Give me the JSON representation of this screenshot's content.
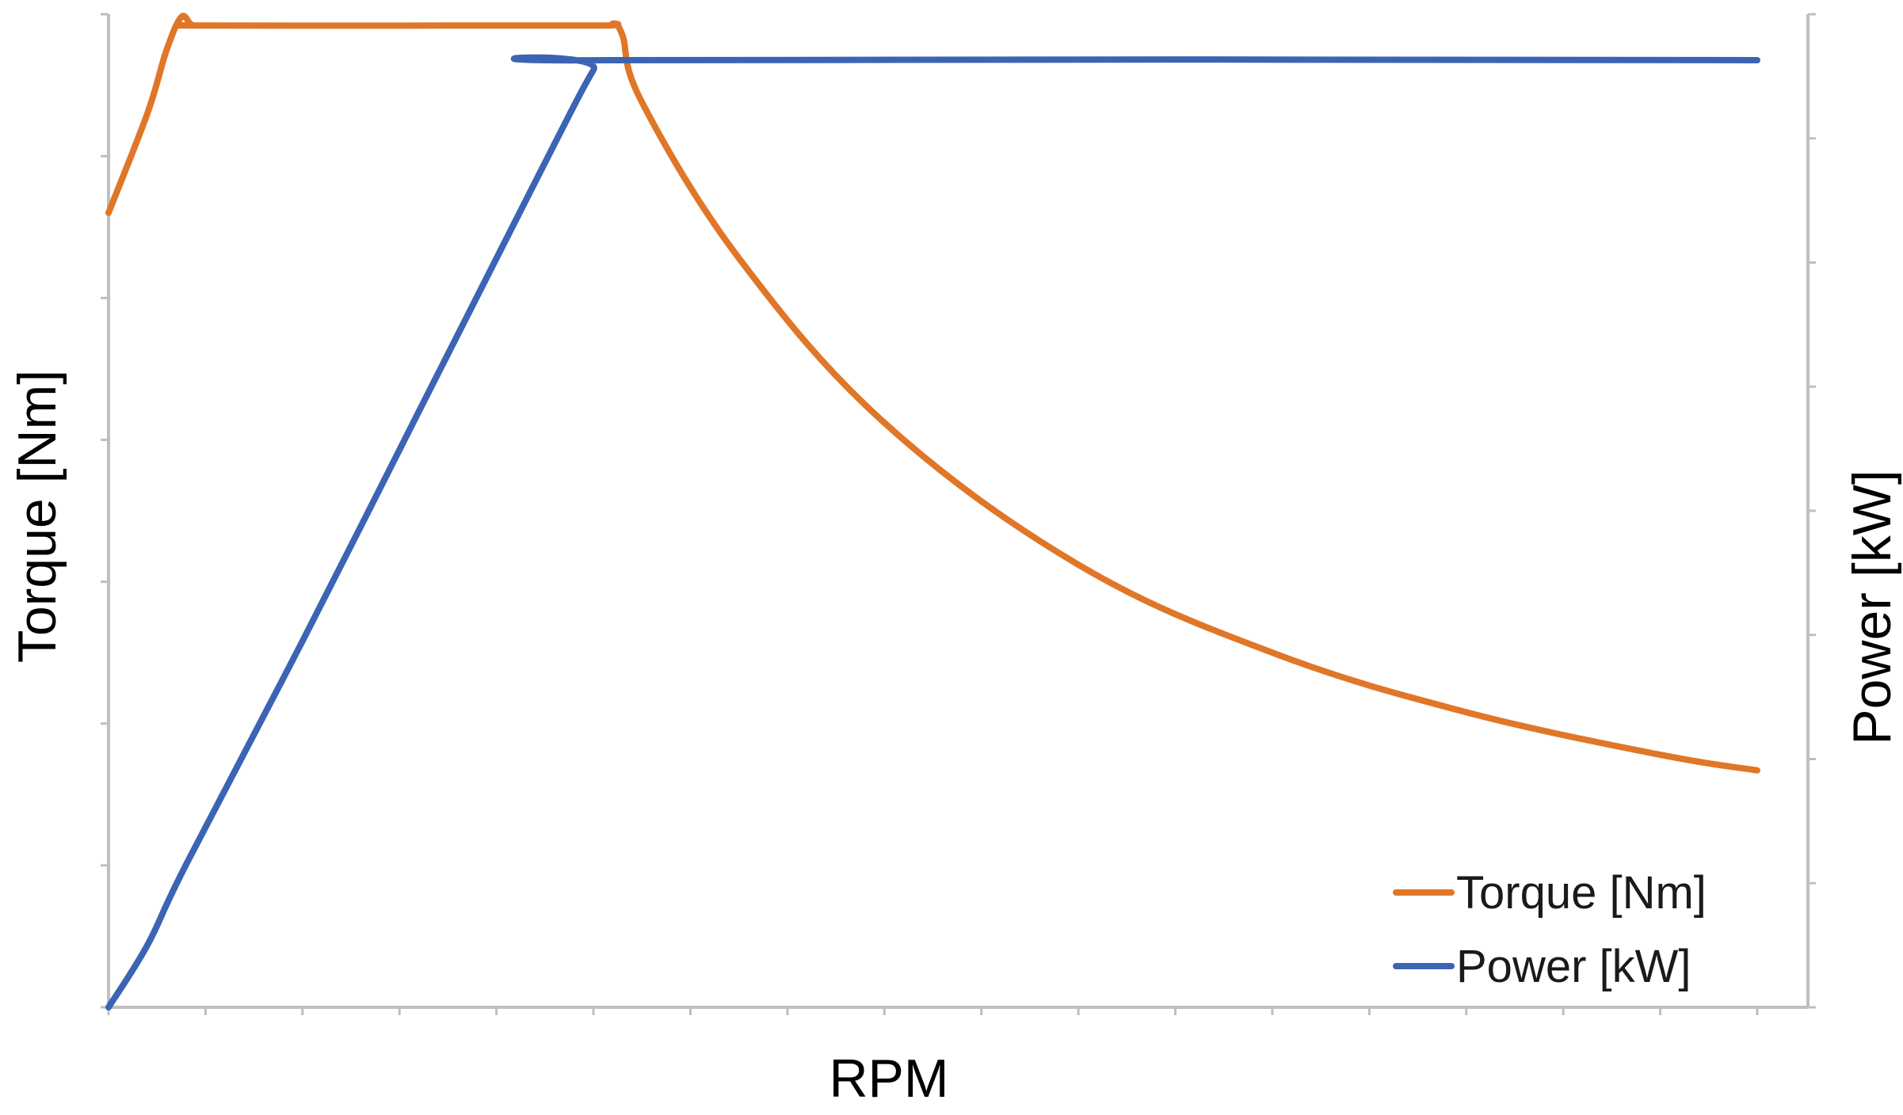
{
  "chart_data": {
    "type": "line",
    "title": "",
    "xlabel": "RPM",
    "ylabel": "Torque [Nm]",
    "y2label": "Power [kW]",
    "xlim": [
      0,
      17
    ],
    "ylim": [
      0,
      7
    ],
    "y2lim": [
      0,
      8
    ],
    "x_tick_count": 18,
    "y_tick_count": 8,
    "y2_tick_count": 9,
    "grid": false,
    "legend_position": "bottom-right",
    "colors": {
      "torque": "#e07628",
      "power": "#3c64b4",
      "axis": "#bfbfbf"
    },
    "series": [
      {
        "name": "Torque [Nm]",
        "axis": "left",
        "x": [
          0,
          0.4,
          0.6,
          0.75,
          0.85,
          0.95,
          3.5,
          5.1,
          5.2,
          5.3,
          5.5,
          6.5,
          8,
          10,
          12,
          14,
          16,
          17
        ],
        "y": [
          5.6,
          6.3,
          6.75,
          6.98,
          6.93,
          6.92,
          6.92,
          6.92,
          6.93,
          6.85,
          6.38,
          5.28,
          4.12,
          3.12,
          2.5,
          2.08,
          1.78,
          1.67
        ]
      },
      {
        "name": "Power [kW]",
        "axis": "right",
        "x": [
          0,
          0.4,
          0.8,
          2,
          3.2,
          4.4,
          5.0,
          5.15,
          17
        ],
        "y": [
          0,
          0.5,
          1.15,
          2.95,
          4.8,
          6.65,
          7.55,
          7.63,
          7.63
        ]
      }
    ]
  }
}
